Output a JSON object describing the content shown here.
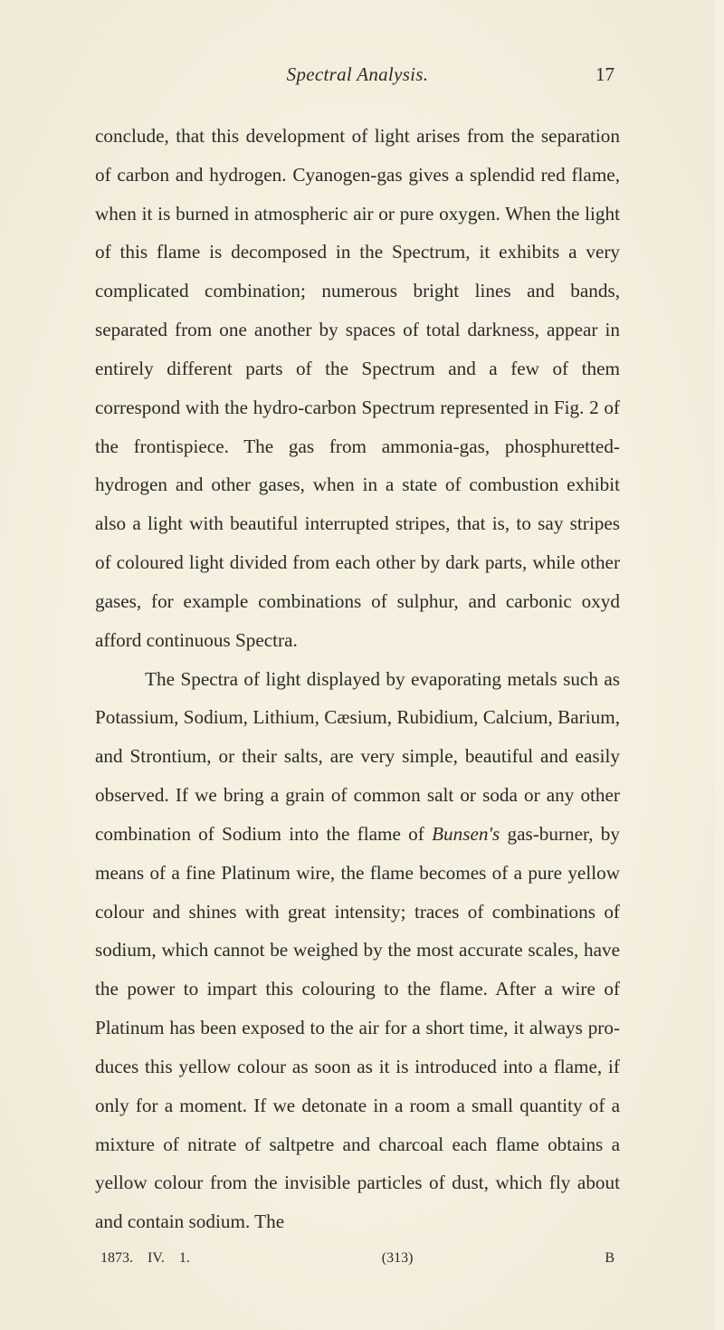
{
  "colors": {
    "page_bg": "#f5f0df",
    "text": "#2a2a28"
  },
  "typography": {
    "body_font_family": "Times New Roman",
    "body_font_size_pt": 16,
    "line_height": 2.02,
    "running_title_italic": true,
    "running_title_size_pt": 16
  },
  "header": {
    "running_title": "Spectral Analysis.",
    "page_number": "17"
  },
  "paragraphs": [
    {
      "indent": false,
      "html": "conclude, that this development of light arises from the sepa­ration of carbon and hydrogen. Cyanogen-gas gives a splendid red flame, when it is burned in atmospheric air or pure oxygen. When the light of this flame is decomposed in the Spectrum, it exhibits a very complicated combination; nume­rous bright lines and bands, separated from one another by spaces of total darkness, appear in entirely different parts of the Spectrum and a few of them correspond with the hydro-carbon Spectrum represented in Fig. 2 of the frontispiece. The gas from ammonia-gas, phosphuretted-hydrogen and other gases, when in a state of combustion exhibit also a light with beautiful interrupted stripes, that is, to say stripes of coloured light divided from each other by dark parts, while other gases, for example combinations of sulphur, and carbonic oxyd afford continuous Spectra."
    },
    {
      "indent": true,
      "html": "The Spectra of light displayed by evaporating metals such as Potassium, Sodium, Lithium, Cæsium, Rubidium, Calcium, Barium, and Strontium, or their salts, are very simple, beautiful and easily observed. If we bring a grain of common salt or soda or any other combination of Sodium into the flame of <span class=\"italic\">Bunsen's</span> gas-burner, by means of a fine Platinum wire, the flame becomes of a pure yellow colour and shines with great intensity; traces of combinations of sodium, which cannot be weighed by the most accurate scales, have the power to im­part this colouring to the flame. After a wire of Platinum has been exposed to the air for a short time, it always pro­duces this yellow colour as soon as it is introduced into a flame, if only for a moment. If we detonate in a room a small quantity of a mixture of nitrate of saltpetre and char­coal each flame obtains a yellow colour from the invisible par­ticles of dust, which fly about and contain sodium. The"
    }
  ],
  "footer": {
    "left": "1873. IV. 1.",
    "center": "(313)",
    "right": "B"
  }
}
